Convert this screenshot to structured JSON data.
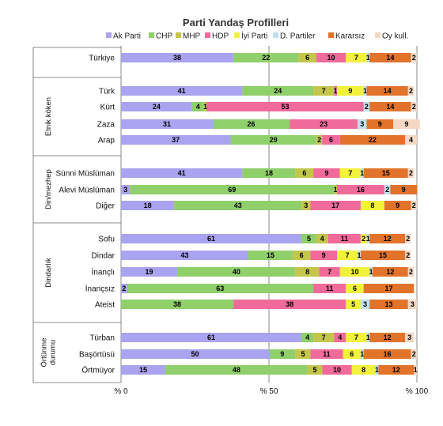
{
  "chart_data": {
    "type": "bar",
    "orientation": "horizontal",
    "stacked": true,
    "title": "Parti Yandaş Profilleri",
    "xlabel": "",
    "ylabel": "",
    "xlim": [
      0,
      100
    ],
    "x_ticks": [
      "% 0",
      "% 50",
      "% 100"
    ],
    "legend_position": "top",
    "series": [
      {
        "name": "Ak Parti",
        "color": "#a9a3f0"
      },
      {
        "name": "CHP",
        "color": "#8fd06a"
      },
      {
        "name": "MHP",
        "color": "#c4c64c"
      },
      {
        "name": "HDP",
        "color": "#f06a9a"
      },
      {
        "name": "İyi Parti",
        "color": "#f2f23a"
      },
      {
        "name": "D. Partiler",
        "color": "#bfe0ee"
      },
      {
        "name": "Kararsız",
        "color": "#e2732a"
      },
      {
        "name": "Oy kull.",
        "color": "#f5d8c4"
      }
    ],
    "groups": [
      {
        "label": "",
        "rows": [
          {
            "label": "Türkiye",
            "values": [
              38,
              22,
              6,
              10,
              7,
              1,
              14,
              2
            ]
          }
        ]
      },
      {
        "label": "Etnik köken",
        "rows": [
          {
            "label": "Türk",
            "values": [
              41,
              24,
              7,
              1,
              9,
              1,
              14,
              2
            ]
          },
          {
            "label": "Kürt",
            "values": [
              24,
              4,
              1,
              53,
              0,
              2,
              14,
              2
            ]
          },
          {
            "label": "Zaza",
            "values": [
              31,
              26,
              0,
              23,
              0,
              3,
              9,
              9
            ]
          },
          {
            "label": "Arap",
            "values": [
              37,
              29,
              2,
              6,
              0,
              0,
              22,
              4
            ]
          }
        ]
      },
      {
        "label": "Din/mezhep",
        "rows": [
          {
            "label": "Sünni Müslüman",
            "values": [
              41,
              18,
              6,
              9,
              7,
              1,
              15,
              2
            ]
          },
          {
            "label": "Alevi Müslüman",
            "values": [
              3,
              69,
              1,
              16,
              0,
              2,
              9,
              0
            ]
          },
          {
            "label": "Diğer",
            "values": [
              18,
              43,
              3,
              17,
              8,
              0,
              9,
              2
            ]
          }
        ]
      },
      {
        "label": "Dindarlık",
        "rows": [
          {
            "label": "Sofu",
            "values": [
              61,
              5,
              4,
              11,
              2,
              1,
              12,
              2
            ]
          },
          {
            "label": "Dindar",
            "values": [
              43,
              15,
              6,
              9,
              7,
              1,
              15,
              2
            ]
          },
          {
            "label": "İnançlı",
            "values": [
              19,
              40,
              8,
              7,
              10,
              1,
              12,
              2
            ]
          },
          {
            "label": "İnançsız",
            "values": [
              2,
              63,
              0,
              11,
              6,
              0,
              17,
              0
            ]
          },
          {
            "label": "Ateist",
            "values": [
              0,
              38,
              0,
              38,
              5,
              3,
              13,
              3
            ]
          }
        ]
      },
      {
        "label": "Örtünme durumu",
        "rows": [
          {
            "label": "Türban",
            "values": [
              61,
              4,
              7,
              4,
              7,
              1,
              12,
              3
            ]
          },
          {
            "label": "Başörtüsü",
            "values": [
              50,
              9,
              5,
              11,
              6,
              1,
              16,
              2
            ]
          },
          {
            "label": "Örtmüyor",
            "values": [
              15,
              48,
              5,
              10,
              8,
              1,
              12,
              1
            ]
          }
        ]
      }
    ]
  }
}
